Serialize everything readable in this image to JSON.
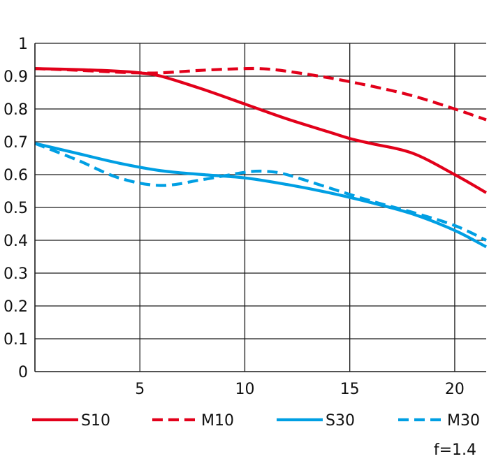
{
  "chart_data": {
    "type": "line",
    "title": "",
    "xlabel": "",
    "ylabel": "",
    "xlim": [
      0,
      21.5
    ],
    "ylim": [
      0,
      1
    ],
    "x_ticks": [
      5,
      10,
      15,
      20
    ],
    "x_tick_labels": [
      "5",
      "10",
      "15",
      "20"
    ],
    "y_ticks": [
      0,
      0.1,
      0.2,
      0.3,
      0.4,
      0.5,
      0.6,
      0.7,
      0.8,
      0.9,
      1
    ],
    "y_tick_labels": [
      "0",
      "0.1",
      "0.2",
      "0.3",
      "0.4",
      "0.5",
      "0.6",
      "0.7",
      "0.8",
      "0.9",
      "1"
    ],
    "grid": true,
    "legend_position": "bottom",
    "series": [
      {
        "name": "S10",
        "color": "#e2001a",
        "style": "solid",
        "x": [
          0,
          2,
          4,
          5,
          6,
          8,
          10,
          12,
          14,
          15,
          16,
          18,
          20,
          21.5
        ],
        "values": [
          0.923,
          0.92,
          0.915,
          0.91,
          0.9,
          0.86,
          0.815,
          0.77,
          0.73,
          0.71,
          0.695,
          0.665,
          0.6,
          0.545
        ]
      },
      {
        "name": "M10",
        "color": "#e2001a",
        "style": "dashed",
        "x": [
          0,
          2,
          4,
          5,
          6,
          8,
          10,
          11,
          12,
          14,
          16,
          18,
          20,
          21.5
        ],
        "values": [
          0.923,
          0.918,
          0.912,
          0.91,
          0.91,
          0.918,
          0.923,
          0.922,
          0.915,
          0.895,
          0.87,
          0.84,
          0.8,
          0.767
        ]
      },
      {
        "name": "S30",
        "color": "#009fe3",
        "style": "solid",
        "x": [
          0,
          2,
          4,
          6,
          8,
          10,
          12,
          14,
          16,
          18,
          20,
          21.5
        ],
        "values": [
          0.695,
          0.665,
          0.635,
          0.612,
          0.6,
          0.59,
          0.57,
          0.545,
          0.515,
          0.48,
          0.43,
          0.38
        ]
      },
      {
        "name": "M30",
        "color": "#009fe3",
        "style": "dashed",
        "x": [
          0,
          2,
          4,
          6,
          8,
          10,
          11,
          12,
          14,
          16,
          18,
          20,
          21.5
        ],
        "values": [
          0.695,
          0.645,
          0.59,
          0.567,
          0.585,
          0.607,
          0.61,
          0.6,
          0.56,
          0.52,
          0.485,
          0.445,
          0.4
        ]
      }
    ],
    "annotation": "f=1.4"
  }
}
